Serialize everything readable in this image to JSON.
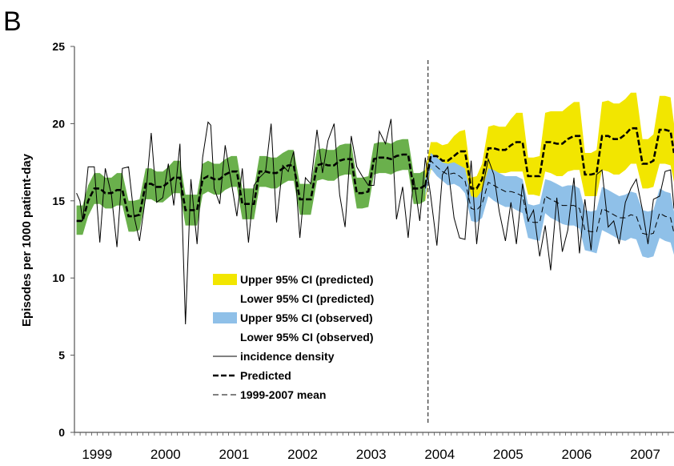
{
  "panel_label": "B",
  "chart_data": {
    "type": "line",
    "ylabel": "Episodes per 1000 patient-day",
    "ylim": [
      0,
      25
    ],
    "yticks": [
      0,
      5,
      10,
      15,
      20,
      25
    ],
    "xlim": [
      1998.67,
      2007.42
    ],
    "xtick_labels": [
      "1999",
      "2000",
      "2001",
      "2002",
      "2003",
      "2004",
      "2005",
      "2006",
      "2007"
    ],
    "xtick_positions": [
      1999.0,
      2000.0,
      2001.0,
      2002.0,
      2003.0,
      2004.0,
      2005.0,
      2006.0,
      2007.0
    ],
    "intervention_x": 2003.83,
    "legend": [
      {
        "label": "Upper 95% CI (predicted)",
        "style": "yellow-fill"
      },
      {
        "label": "Lower 95% CI (predicted)",
        "style": "none"
      },
      {
        "label": "Upper 95% CI (observed)",
        "style": "blue-fill"
      },
      {
        "label": "Lower 95% CI (observed)",
        "style": "none"
      },
      {
        "label": "incidence density",
        "style": "thin-solid"
      },
      {
        "label": "Predicted",
        "style": "thick-dashed"
      },
      {
        "label": "1999-2007 mean",
        "style": "thin-dashed"
      }
    ],
    "colors": {
      "pre_band": "#6ab04c",
      "predicted_band": "#f2e600",
      "observed_band": "#8fc0e8",
      "lines": "#000000"
    },
    "predicted_pre": {
      "x": [
        1998.7,
        1998.79,
        1998.87,
        1998.96,
        1999.04,
        1999.12,
        1999.21,
        1999.29,
        1999.37,
        1999.46,
        1999.54,
        1999.62,
        1999.71,
        1999.79,
        1999.87,
        1999.96,
        2000.04,
        2000.12,
        2000.21,
        2000.29,
        2000.37,
        2000.46,
        2000.54,
        2000.62,
        2000.71,
        2000.79,
        2000.87,
        2000.96,
        2001.04,
        2001.12,
        2001.21,
        2001.29,
        2001.37,
        2001.46,
        2001.54,
        2001.62,
        2001.71,
        2001.79,
        2001.87,
        2001.96,
        2002.04,
        2002.12,
        2002.21,
        2002.29,
        2002.37,
        2002.46,
        2002.54,
        2002.62,
        2002.71,
        2002.79,
        2002.87,
        2002.96,
        2003.04,
        2003.12,
        2003.21,
        2003.29,
        2003.37,
        2003.46,
        2003.54,
        2003.62,
        2003.71,
        2003.79
      ],
      "y": [
        13.7,
        13.7,
        15.0,
        15.8,
        15.8,
        15.5,
        15.5,
        15.7,
        15.7,
        14.0,
        14.0,
        14.1,
        16.1,
        16.1,
        15.9,
        15.9,
        16.2,
        16.5,
        16.5,
        14.4,
        14.4,
        14.4,
        16.4,
        16.6,
        16.4,
        16.4,
        16.7,
        16.9,
        16.9,
        14.8,
        14.8,
        14.8,
        16.9,
        16.9,
        16.8,
        16.8,
        17.1,
        17.3,
        17.3,
        15.1,
        15.1,
        15.1,
        17.3,
        17.4,
        17.3,
        17.3,
        17.6,
        17.7,
        17.7,
        15.5,
        15.5,
        15.6,
        17.7,
        17.8,
        17.8,
        17.7,
        17.9,
        18.0,
        18.0,
        15.8,
        15.8,
        16.0
      ],
      "upper": [
        14.7,
        14.7,
        16.0,
        16.8,
        16.8,
        16.5,
        16.5,
        16.8,
        16.8,
        15.0,
        15.0,
        15.1,
        17.1,
        17.1,
        16.9,
        16.9,
        17.2,
        17.6,
        17.6,
        15.4,
        15.4,
        15.4,
        17.4,
        17.6,
        17.4,
        17.4,
        17.7,
        17.9,
        17.9,
        15.8,
        15.8,
        15.8,
        17.9,
        17.9,
        17.8,
        17.8,
        18.1,
        18.3,
        18.3,
        16.1,
        16.1,
        16.1,
        18.3,
        18.4,
        18.3,
        18.3,
        18.6,
        18.7,
        18.7,
        16.5,
        16.5,
        16.6,
        18.7,
        18.8,
        18.8,
        18.7,
        18.9,
        19.0,
        19.0,
        16.8,
        16.8,
        17.0
      ],
      "lower": [
        12.8,
        12.8,
        14.0,
        14.8,
        14.8,
        14.5,
        14.5,
        14.7,
        14.7,
        13.0,
        13.0,
        13.1,
        15.1,
        15.1,
        14.9,
        14.9,
        15.2,
        15.5,
        15.5,
        13.4,
        13.4,
        13.4,
        15.4,
        15.6,
        15.4,
        15.4,
        15.7,
        15.9,
        15.9,
        13.8,
        13.8,
        13.8,
        15.9,
        15.9,
        15.8,
        15.8,
        16.1,
        16.3,
        16.3,
        14.1,
        14.1,
        14.1,
        16.3,
        16.4,
        16.3,
        16.3,
        16.6,
        16.7,
        16.7,
        14.5,
        14.5,
        14.6,
        16.7,
        16.8,
        16.8,
        16.7,
        16.9,
        17.0,
        17.0,
        14.8,
        14.8,
        15.0
      ]
    },
    "predicted_post": {
      "x": [
        2003.79,
        2003.87,
        2003.96,
        2004.04,
        2004.12,
        2004.21,
        2004.29,
        2004.37,
        2004.46,
        2004.54,
        2004.62,
        2004.71,
        2004.79,
        2004.87,
        2004.96,
        2005.04,
        2005.12,
        2005.21,
        2005.29,
        2005.37,
        2005.46,
        2005.54,
        2005.62,
        2005.71,
        2005.79,
        2005.87,
        2005.96,
        2006.04,
        2006.12,
        2006.21,
        2006.29,
        2006.37,
        2006.46,
        2006.54,
        2006.62,
        2006.71,
        2006.79,
        2006.87,
        2006.96,
        2007.04,
        2007.12,
        2007.21,
        2007.29,
        2007.37,
        2007.42
      ],
      "y": [
        16.0,
        17.9,
        17.9,
        17.6,
        17.6,
        17.9,
        18.2,
        18.2,
        15.8,
        15.8,
        16.4,
        18.4,
        18.4,
        18.3,
        18.3,
        18.6,
        18.8,
        18.8,
        16.6,
        16.6,
        16.6,
        18.8,
        18.8,
        18.7,
        18.7,
        19.0,
        19.2,
        19.2,
        16.7,
        16.7,
        16.8,
        19.2,
        19.2,
        19.0,
        19.0,
        19.3,
        19.7,
        19.7,
        17.4,
        17.4,
        17.6,
        19.6,
        19.6,
        19.5,
        18.1
      ],
      "upper": [
        17.0,
        18.8,
        18.8,
        18.6,
        18.7,
        19.2,
        19.5,
        19.6,
        16.5,
        16.6,
        17.4,
        19.8,
        19.9,
        19.8,
        19.8,
        20.3,
        20.7,
        20.7,
        17.8,
        17.8,
        17.9,
        20.7,
        20.8,
        20.8,
        20.8,
        21.1,
        21.4,
        21.4,
        18.1,
        18.1,
        18.3,
        21.4,
        21.5,
        21.3,
        21.3,
        21.6,
        22.0,
        22.0,
        19.0,
        19.0,
        19.3,
        21.8,
        21.8,
        21.7,
        20.0
      ],
      "lower": [
        15.0,
        17.0,
        17.0,
        16.6,
        16.5,
        16.6,
        16.9,
        16.8,
        15.1,
        15.0,
        15.4,
        17.0,
        16.9,
        16.8,
        16.8,
        16.9,
        16.9,
        16.9,
        15.4,
        15.4,
        15.3,
        16.9,
        16.8,
        16.6,
        16.6,
        16.9,
        17.0,
        17.0,
        15.3,
        15.3,
        15.3,
        17.0,
        16.9,
        16.7,
        16.7,
        17.0,
        17.4,
        17.4,
        15.8,
        15.8,
        15.9,
        17.4,
        17.4,
        17.3,
        16.2
      ]
    },
    "observed_mean": {
      "x": [
        2003.79,
        2003.87,
        2003.96,
        2004.04,
        2004.12,
        2004.21,
        2004.29,
        2004.37,
        2004.46,
        2004.54,
        2004.62,
        2004.71,
        2004.79,
        2004.87,
        2004.96,
        2005.04,
        2005.12,
        2005.21,
        2005.29,
        2005.37,
        2005.46,
        2005.54,
        2005.62,
        2005.71,
        2005.79,
        2005.87,
        2005.96,
        2006.04,
        2006.12,
        2006.21,
        2006.29,
        2006.37,
        2006.46,
        2006.54,
        2006.62,
        2006.71,
        2006.79,
        2006.87,
        2006.96,
        2007.04,
        2007.12,
        2007.21,
        2007.29,
        2007.37,
        2007.42
      ],
      "y": [
        15.8,
        17.6,
        17.2,
        16.9,
        16.7,
        16.8,
        16.6,
        16.3,
        14.5,
        14.4,
        14.8,
        16.2,
        16.0,
        15.8,
        15.6,
        15.6,
        15.5,
        15.3,
        13.7,
        13.6,
        13.6,
        15.3,
        15.1,
        14.9,
        14.7,
        14.7,
        14.7,
        14.5,
        13.1,
        13.0,
        13.0,
        14.5,
        14.3,
        14.1,
        13.9,
        13.9,
        14.1,
        14.0,
        12.9,
        12.8,
        12.9,
        14.2,
        14.0,
        13.9,
        12.9
      ],
      "upper": [
        16.4,
        18.1,
        17.8,
        17.5,
        17.4,
        17.5,
        17.3,
        17.1,
        15.3,
        15.2,
        15.7,
        17.1,
        17.0,
        16.8,
        16.6,
        16.6,
        16.6,
        16.4,
        14.8,
        14.7,
        14.8,
        16.4,
        16.3,
        16.1,
        15.9,
        16.0,
        16.0,
        15.8,
        14.4,
        14.3,
        14.4,
        15.9,
        15.7,
        15.5,
        15.3,
        15.4,
        15.6,
        15.5,
        14.4,
        14.3,
        14.4,
        15.8,
        15.6,
        15.5,
        14.3
      ],
      "lower": [
        15.2,
        17.1,
        16.6,
        16.3,
        16.0,
        16.1,
        15.9,
        15.5,
        13.7,
        13.6,
        13.9,
        15.3,
        15.0,
        14.8,
        14.6,
        14.6,
        14.4,
        14.2,
        12.6,
        12.5,
        12.4,
        14.2,
        13.9,
        13.7,
        13.5,
        13.4,
        13.4,
        13.2,
        11.8,
        11.7,
        11.6,
        13.1,
        12.9,
        12.7,
        12.5,
        12.4,
        12.6,
        12.5,
        11.4,
        11.3,
        11.4,
        12.6,
        12.4,
        12.3,
        11.5
      ]
    },
    "incidence_density": {
      "x": [
        1998.7,
        1998.75,
        1998.79,
        1998.87,
        1998.96,
        1999.04,
        1999.12,
        1999.21,
        1999.29,
        1999.37,
        1999.46,
        1999.54,
        1999.62,
        1999.71,
        1999.79,
        1999.87,
        1999.96,
        2000.04,
        2000.12,
        2000.21,
        2000.29,
        2000.37,
        2000.46,
        2000.54,
        2000.62,
        2000.66,
        2000.71,
        2000.79,
        2000.87,
        2000.96,
        2001.04,
        2001.12,
        2001.21,
        2001.29,
        2001.37,
        2001.46,
        2001.54,
        2001.62,
        2001.71,
        2001.79,
        2001.87,
        2001.96,
        2002.04,
        2002.12,
        2002.21,
        2002.29,
        2002.37,
        2002.46,
        2002.54,
        2002.62,
        2002.71,
        2002.79,
        2002.87,
        2002.96,
        2003.04,
        2003.12,
        2003.21,
        2003.29,
        2003.37,
        2003.46,
        2003.54,
        2003.62,
        2003.71,
        2003.79,
        2003.87,
        2003.96,
        2004.04,
        2004.12,
        2004.21,
        2004.29,
        2004.37,
        2004.46,
        2004.54,
        2004.62,
        2004.71,
        2004.79,
        2004.87,
        2004.96,
        2005.04,
        2005.12,
        2005.21,
        2005.29,
        2005.37,
        2005.46,
        2005.54,
        2005.62,
        2005.71,
        2005.79,
        2005.87,
        2005.96,
        2006.04,
        2006.12,
        2006.21,
        2006.29,
        2006.37,
        2006.46,
        2006.54,
        2006.62,
        2006.71,
        2006.79,
        2006.87,
        2006.96,
        2007.04,
        2007.12,
        2007.21,
        2007.29,
        2007.37,
        2007.42
      ],
      "y": [
        15.5,
        15.0,
        13.7,
        17.2,
        17.2,
        12.3,
        17.1,
        15.4,
        12.0,
        17.1,
        17.2,
        14.0,
        12.4,
        15.3,
        19.4,
        14.9,
        15.2,
        17.4,
        14.7,
        18.7,
        7.0,
        16.4,
        12.2,
        17.8,
        20.1,
        19.9,
        15.8,
        14.8,
        18.6,
        16.2,
        14.0,
        17.1,
        12.3,
        16.0,
        16.5,
        16.9,
        20.0,
        13.6,
        17.3,
        16.9,
        18.2,
        12.6,
        16.5,
        16.1,
        19.6,
        16.8,
        18.9,
        20.0,
        15.4,
        13.3,
        19.2,
        17.2,
        16.6,
        16.0,
        16.0,
        19.5,
        18.7,
        20.3,
        13.8,
        15.9,
        12.6,
        16.5,
        13.7,
        17.8,
        15.3,
        12.1,
        16.7,
        17.2,
        13.9,
        12.6,
        12.5,
        17.6,
        12.2,
        15.7,
        17.7,
        16.7,
        14.3,
        12.4,
        14.9,
        12.2,
        16.1,
        13.7,
        14.4,
        11.4,
        13.4,
        10.5,
        15.2,
        11.7,
        13.1,
        16.5,
        11.6,
        15.1,
        11.8,
        16.7,
        17.0,
        13.3,
        13.7,
        12.2,
        14.9,
        15.8,
        16.4,
        14.4,
        12.2,
        15.1,
        15.3,
        16.9,
        17.0,
        14.5
      ]
    }
  }
}
